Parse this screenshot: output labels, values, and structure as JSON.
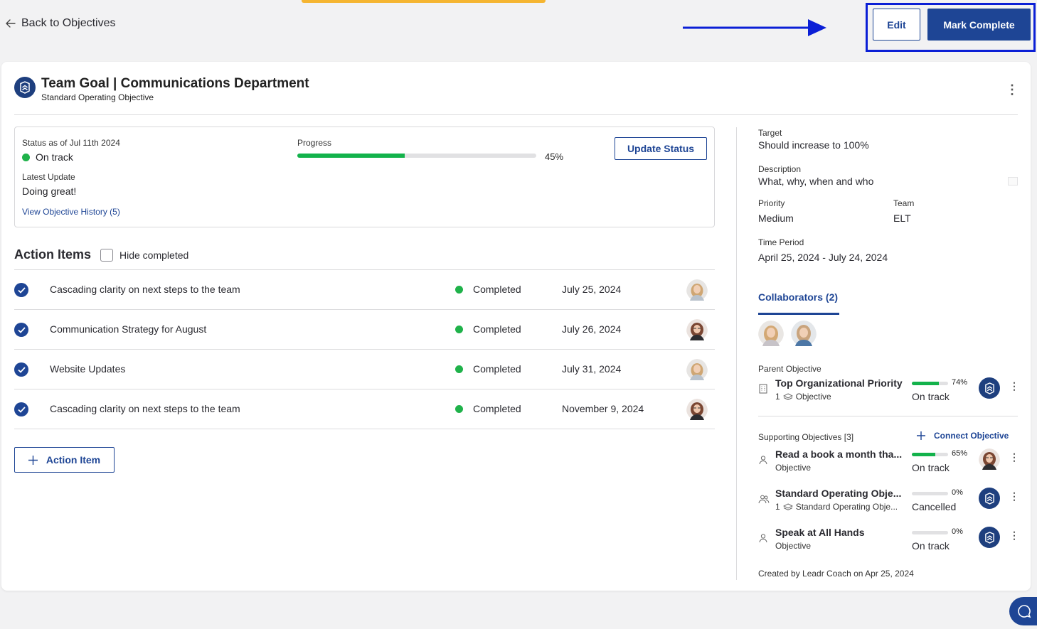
{
  "nav": {
    "back_label": "Back to Objectives"
  },
  "header_actions": {
    "edit_label": "Edit",
    "complete_label": "Mark Complete"
  },
  "objective": {
    "title": "Team Goal | Communications Department",
    "subtitle": "Standard Operating Objective"
  },
  "status_panel": {
    "status_label": "Status as of Jul 11th 2024",
    "status_value": "On track",
    "progress_label": "Progress",
    "progress_pct": "45%",
    "progress_fraction": 0.45,
    "update_button": "Update Status",
    "latest_update_label": "Latest Update",
    "latest_update_value": "Doing great!",
    "history_link": "View Objective History (5)",
    "status_color": "#1fb24a"
  },
  "action_items": {
    "title": "Action Items",
    "hide_completed_label": "Hide completed",
    "add_button": "Action Item",
    "items": [
      {
        "name": "Cascading clarity on next steps to the team",
        "status": "Completed",
        "date": "July 25, 2024",
        "avatar": "blonde-woman"
      },
      {
        "name": "Communication Strategy for August",
        "status": "Completed",
        "date": "July 26, 2024",
        "avatar": "brunette-woman-glasses"
      },
      {
        "name": "Website Updates",
        "status": "Completed",
        "date": "July 31, 2024",
        "avatar": "blonde-woman"
      },
      {
        "name": "Cascading clarity on next steps to the team",
        "status": "Completed",
        "date": "November 9, 2024",
        "avatar": "brunette-woman-glasses"
      }
    ]
  },
  "details": {
    "target_label": "Target",
    "target_value": "Should increase to 100%",
    "description_label": "Description",
    "description_value": "What, why, when and who",
    "priority_label": "Priority",
    "priority_value": "Medium",
    "team_label": "Team",
    "team_value": "ELT",
    "time_period_label": "Time Period",
    "time_period_value": "April 25, 2024 - July 24, 2024"
  },
  "collaborators": {
    "tab_label": "Collaborators (2)"
  },
  "parent_objective": {
    "label": "Parent Objective",
    "name": "Top Organizational Priority",
    "sub_count": "1",
    "sub_text": "Objective",
    "pct": "74%",
    "fraction": 0.74,
    "status": "On track"
  },
  "supporting": {
    "label": "Supporting Objectives [3]",
    "connect_label": "Connect Objective",
    "items": [
      {
        "name": "Read a book a month tha...",
        "sub_count": "",
        "sub_text": "Objective",
        "pct": "65%",
        "fraction": 0.65,
        "status": "On track"
      },
      {
        "name": "Standard Operating Obje...",
        "sub_count": "1",
        "sub_text": "Standard Operating Obje...",
        "pct": "0%",
        "fraction": 0,
        "status": "Cancelled"
      },
      {
        "name": "Speak at All Hands",
        "sub_count": "",
        "sub_text": "Objective",
        "pct": "0%",
        "fraction": 0,
        "status": "On track"
      }
    ]
  },
  "footer": {
    "created_by": "Created by Leadr Coach on Apr 25, 2024"
  },
  "colors": {
    "brand": "#1e4595",
    "success": "#13b24b",
    "accent_bar": "#f5b531",
    "annotation": "#0b1fd6"
  }
}
